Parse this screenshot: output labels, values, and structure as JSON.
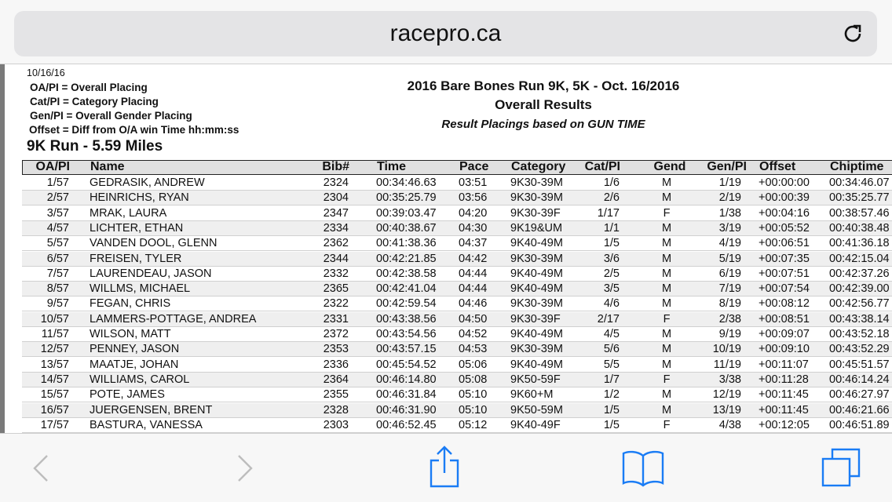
{
  "browser": {
    "url": "racepro.ca",
    "reload_icon": "reload-icon"
  },
  "doc": {
    "date": "10/16/16",
    "legend": [
      "OA/PI = Overall Placing",
      "Cat/PI = Category Placing",
      "Gen/PI = Overall Gender Placing",
      "Offset = Diff from O/A win Time hh:mm:ss"
    ],
    "title": "2016 Bare Bones Run 9K, 5K  - Oct. 16/2016",
    "subtitle": "Overall Results",
    "note": "Result Placings based on GUN TIME",
    "section": "9K Run - 5.59 Miles"
  },
  "table": {
    "headers": [
      "OA/PI",
      "Name",
      "Bib#",
      "Time",
      "Pace",
      "Category",
      "Cat/PI",
      "Gend",
      "Gen/PI",
      "Offset",
      "Chiptime"
    ],
    "rows": [
      [
        "1/57",
        "GEDRASIK, ANDREW",
        "2324",
        "00:34:46.63",
        "03:51",
        "9K30-39M",
        "1/6",
        "M",
        "1/19",
        "+00:00:00",
        "00:34:46.07"
      ],
      [
        "2/57",
        "HEINRICHS, RYAN",
        "2304",
        "00:35:25.79",
        "03:56",
        "9K30-39M",
        "2/6",
        "M",
        "2/19",
        "+00:00:39",
        "00:35:25.77"
      ],
      [
        "3/57",
        "MRAK, LAURA",
        "2347",
        "00:39:03.47",
        "04:20",
        "9K30-39F",
        "1/17",
        "F",
        "1/38",
        "+00:04:16",
        "00:38:57.46"
      ],
      [
        "4/57",
        "LICHTER, ETHAN",
        "2334",
        "00:40:38.67",
        "04:30",
        "9K19&UM",
        "1/1",
        "M",
        "3/19",
        "+00:05:52",
        "00:40:38.48"
      ],
      [
        "5/57",
        "VANDEN DOOL, GLENN",
        "2362",
        "00:41:38.36",
        "04:37",
        "9K40-49M",
        "1/5",
        "M",
        "4/19",
        "+00:06:51",
        "00:41:36.18"
      ],
      [
        "6/57",
        "FREISEN, TYLER",
        "2344",
        "00:42:21.85",
        "04:42",
        "9K30-39M",
        "3/6",
        "M",
        "5/19",
        "+00:07:35",
        "00:42:15.04"
      ],
      [
        "7/57",
        "LAURENDEAU, JASON",
        "2332",
        "00:42:38.58",
        "04:44",
        "9K40-49M",
        "2/5",
        "M",
        "6/19",
        "+00:07:51",
        "00:42:37.26"
      ],
      [
        "8/57",
        "WILLMS, MICHAEL",
        "2365",
        "00:42:41.04",
        "04:44",
        "9K40-49M",
        "3/5",
        "M",
        "7/19",
        "+00:07:54",
        "00:42:39.00"
      ],
      [
        "9/57",
        "FEGAN, CHRIS",
        "2322",
        "00:42:59.54",
        "04:46",
        "9K30-39M",
        "4/6",
        "M",
        "8/19",
        "+00:08:12",
        "00:42:56.77"
      ],
      [
        "10/57",
        "LAMMERS-POTTAGE, ANDREA",
        "2331",
        "00:43:38.56",
        "04:50",
        "9K30-39F",
        "2/17",
        "F",
        "2/38",
        "+00:08:51",
        "00:43:38.14"
      ],
      [
        "11/57",
        "WILSON, MATT",
        "2372",
        "00:43:54.56",
        "04:52",
        "9K40-49M",
        "4/5",
        "M",
        "9/19",
        "+00:09:07",
        "00:43:52.18"
      ],
      [
        "12/57",
        "PENNEY, JASON",
        "2353",
        "00:43:57.15",
        "04:53",
        "9K30-39M",
        "5/6",
        "M",
        "10/19",
        "+00:09:10",
        "00:43:52.29"
      ],
      [
        "13/57",
        "MAATJE, JOHAN",
        "2336",
        "00:45:54.52",
        "05:06",
        "9K40-49M",
        "5/5",
        "M",
        "11/19",
        "+00:11:07",
        "00:45:51.57"
      ],
      [
        "14/57",
        "WILLIAMS, CAROL",
        "2364",
        "00:46:14.80",
        "05:08",
        "9K50-59F",
        "1/7",
        "F",
        "3/38",
        "+00:11:28",
        "00:46:14.24"
      ],
      [
        "15/57",
        "POTE, JAMES",
        "2355",
        "00:46:31.84",
        "05:10",
        "9K60+M",
        "1/2",
        "M",
        "12/19",
        "+00:11:45",
        "00:46:27.97"
      ],
      [
        "16/57",
        "JUERGENSEN, BRENT",
        "2328",
        "00:46:31.90",
        "05:10",
        "9K50-59M",
        "1/5",
        "M",
        "13/19",
        "+00:11:45",
        "00:46:21.66"
      ],
      [
        "17/57",
        "BASTURA, VANESSA",
        "2303",
        "00:46:52.45",
        "05:12",
        "9K40-49F",
        "1/5",
        "F",
        "4/38",
        "+00:12:05",
        "00:46:51.89"
      ]
    ]
  },
  "toolbar": {
    "icons": [
      "back-icon",
      "forward-icon",
      "share-icon",
      "bookmarks-icon",
      "tabs-icon"
    ],
    "accent": "#1a7cf5",
    "disabled": "#bdbdbd"
  }
}
